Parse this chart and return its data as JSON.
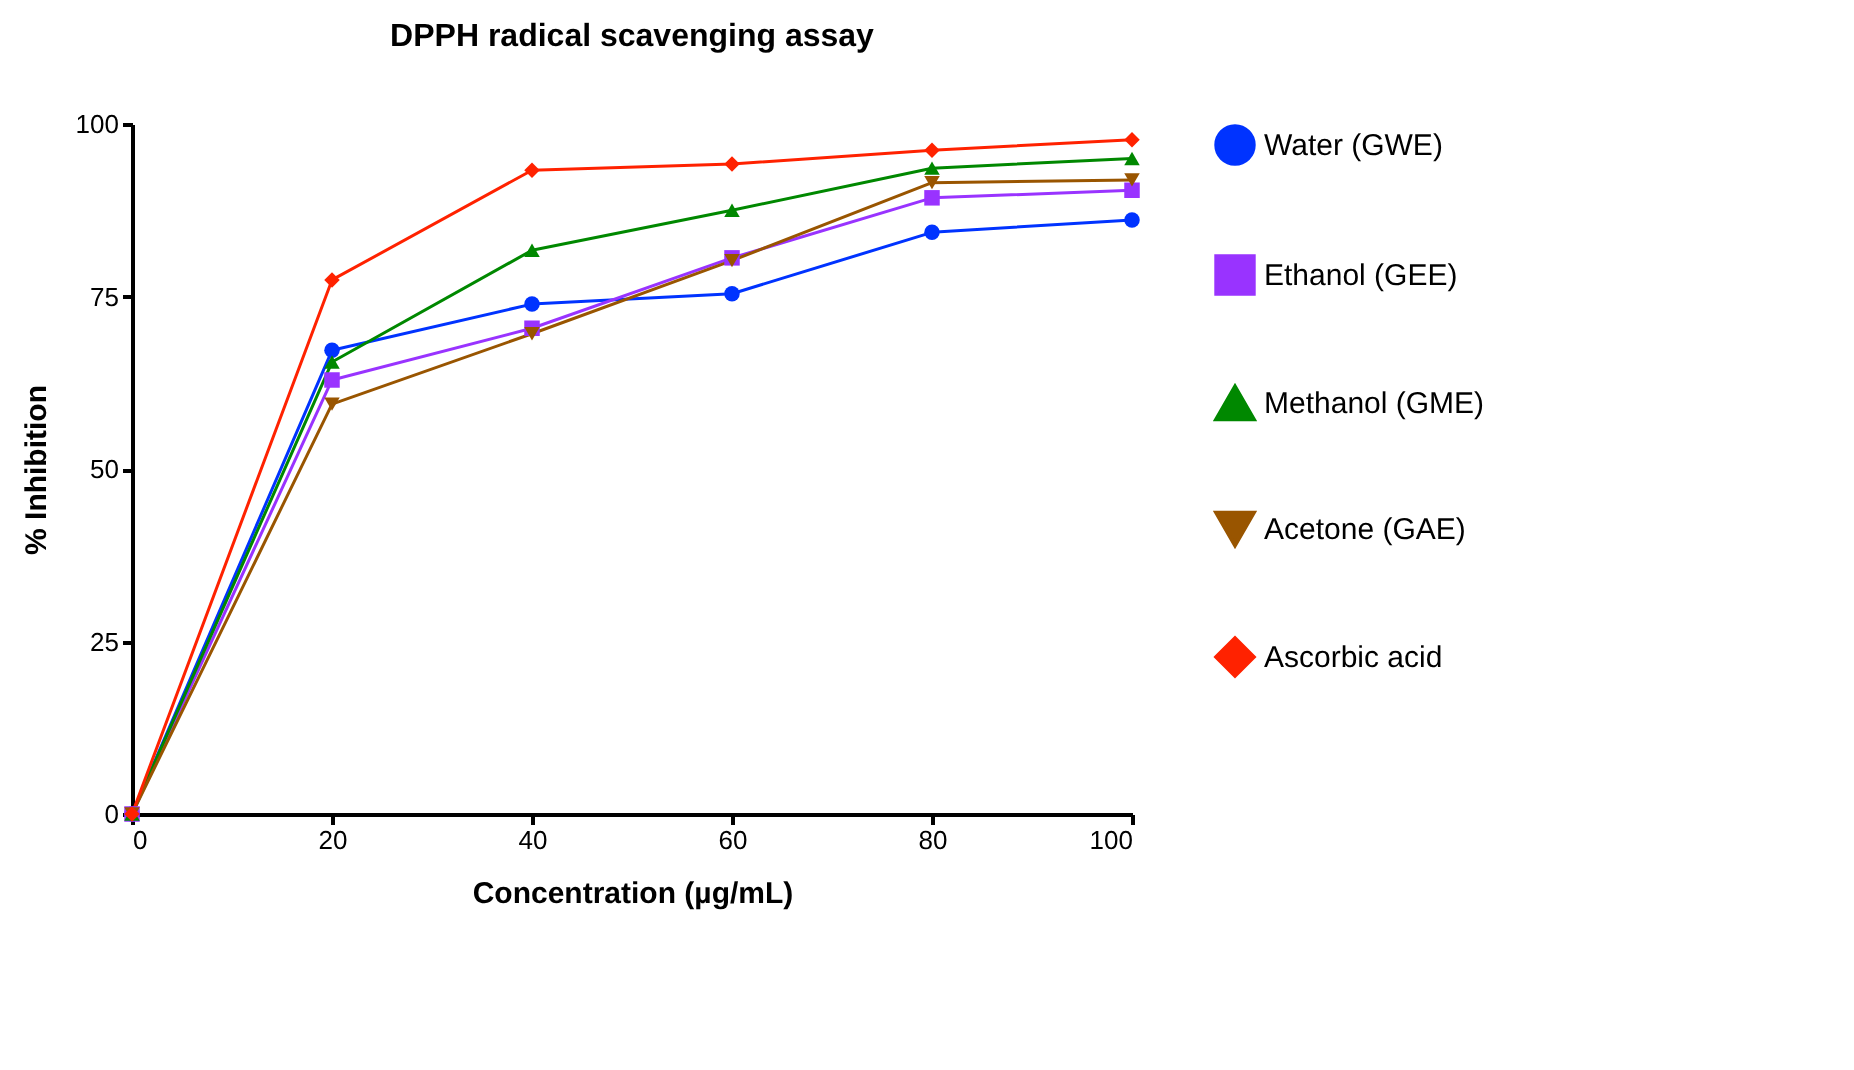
{
  "chart_data": {
    "type": "line",
    "title": "DPPH radical scavenging assay",
    "xlabel": "Concentration (µg/mL)",
    "ylabel": "% Inhibition",
    "x": [
      0,
      20,
      40,
      60,
      80,
      100
    ],
    "xlim": [
      0,
      100
    ],
    "xticks": [
      0,
      20,
      40,
      60,
      80,
      100
    ],
    "ylim": [
      0,
      100
    ],
    "yticks": [
      0,
      25,
      50,
      75,
      100
    ],
    "grid": false,
    "legend": "right",
    "series": [
      {
        "name": "Water (GWE)",
        "color": "#0033ff",
        "marker": "circle",
        "values": [
          0,
          67.2,
          73.9,
          75.4,
          84.3,
          86.1
        ]
      },
      {
        "name": "Ethanol (GEE)",
        "color": "#9933ff",
        "marker": "square",
        "values": [
          0,
          62.9,
          70.4,
          80.6,
          89.3,
          90.4
        ]
      },
      {
        "name": "Methanol (GME)",
        "color": "#008800",
        "marker": "triangle",
        "values": [
          0,
          65.5,
          81.7,
          87.5,
          93.6,
          95
        ]
      },
      {
        "name": "Acetone (GAE)",
        "color": "#995500",
        "marker": "triangle-down",
        "values": [
          0,
          59.4,
          69.6,
          80.2,
          91.5,
          91.9
        ]
      },
      {
        "name": "Ascorbic acid",
        "color": "#ff2200",
        "marker": "diamond",
        "values": [
          0,
          77.4,
          93.3,
          94.2,
          96.2,
          97.7
        ]
      }
    ]
  }
}
